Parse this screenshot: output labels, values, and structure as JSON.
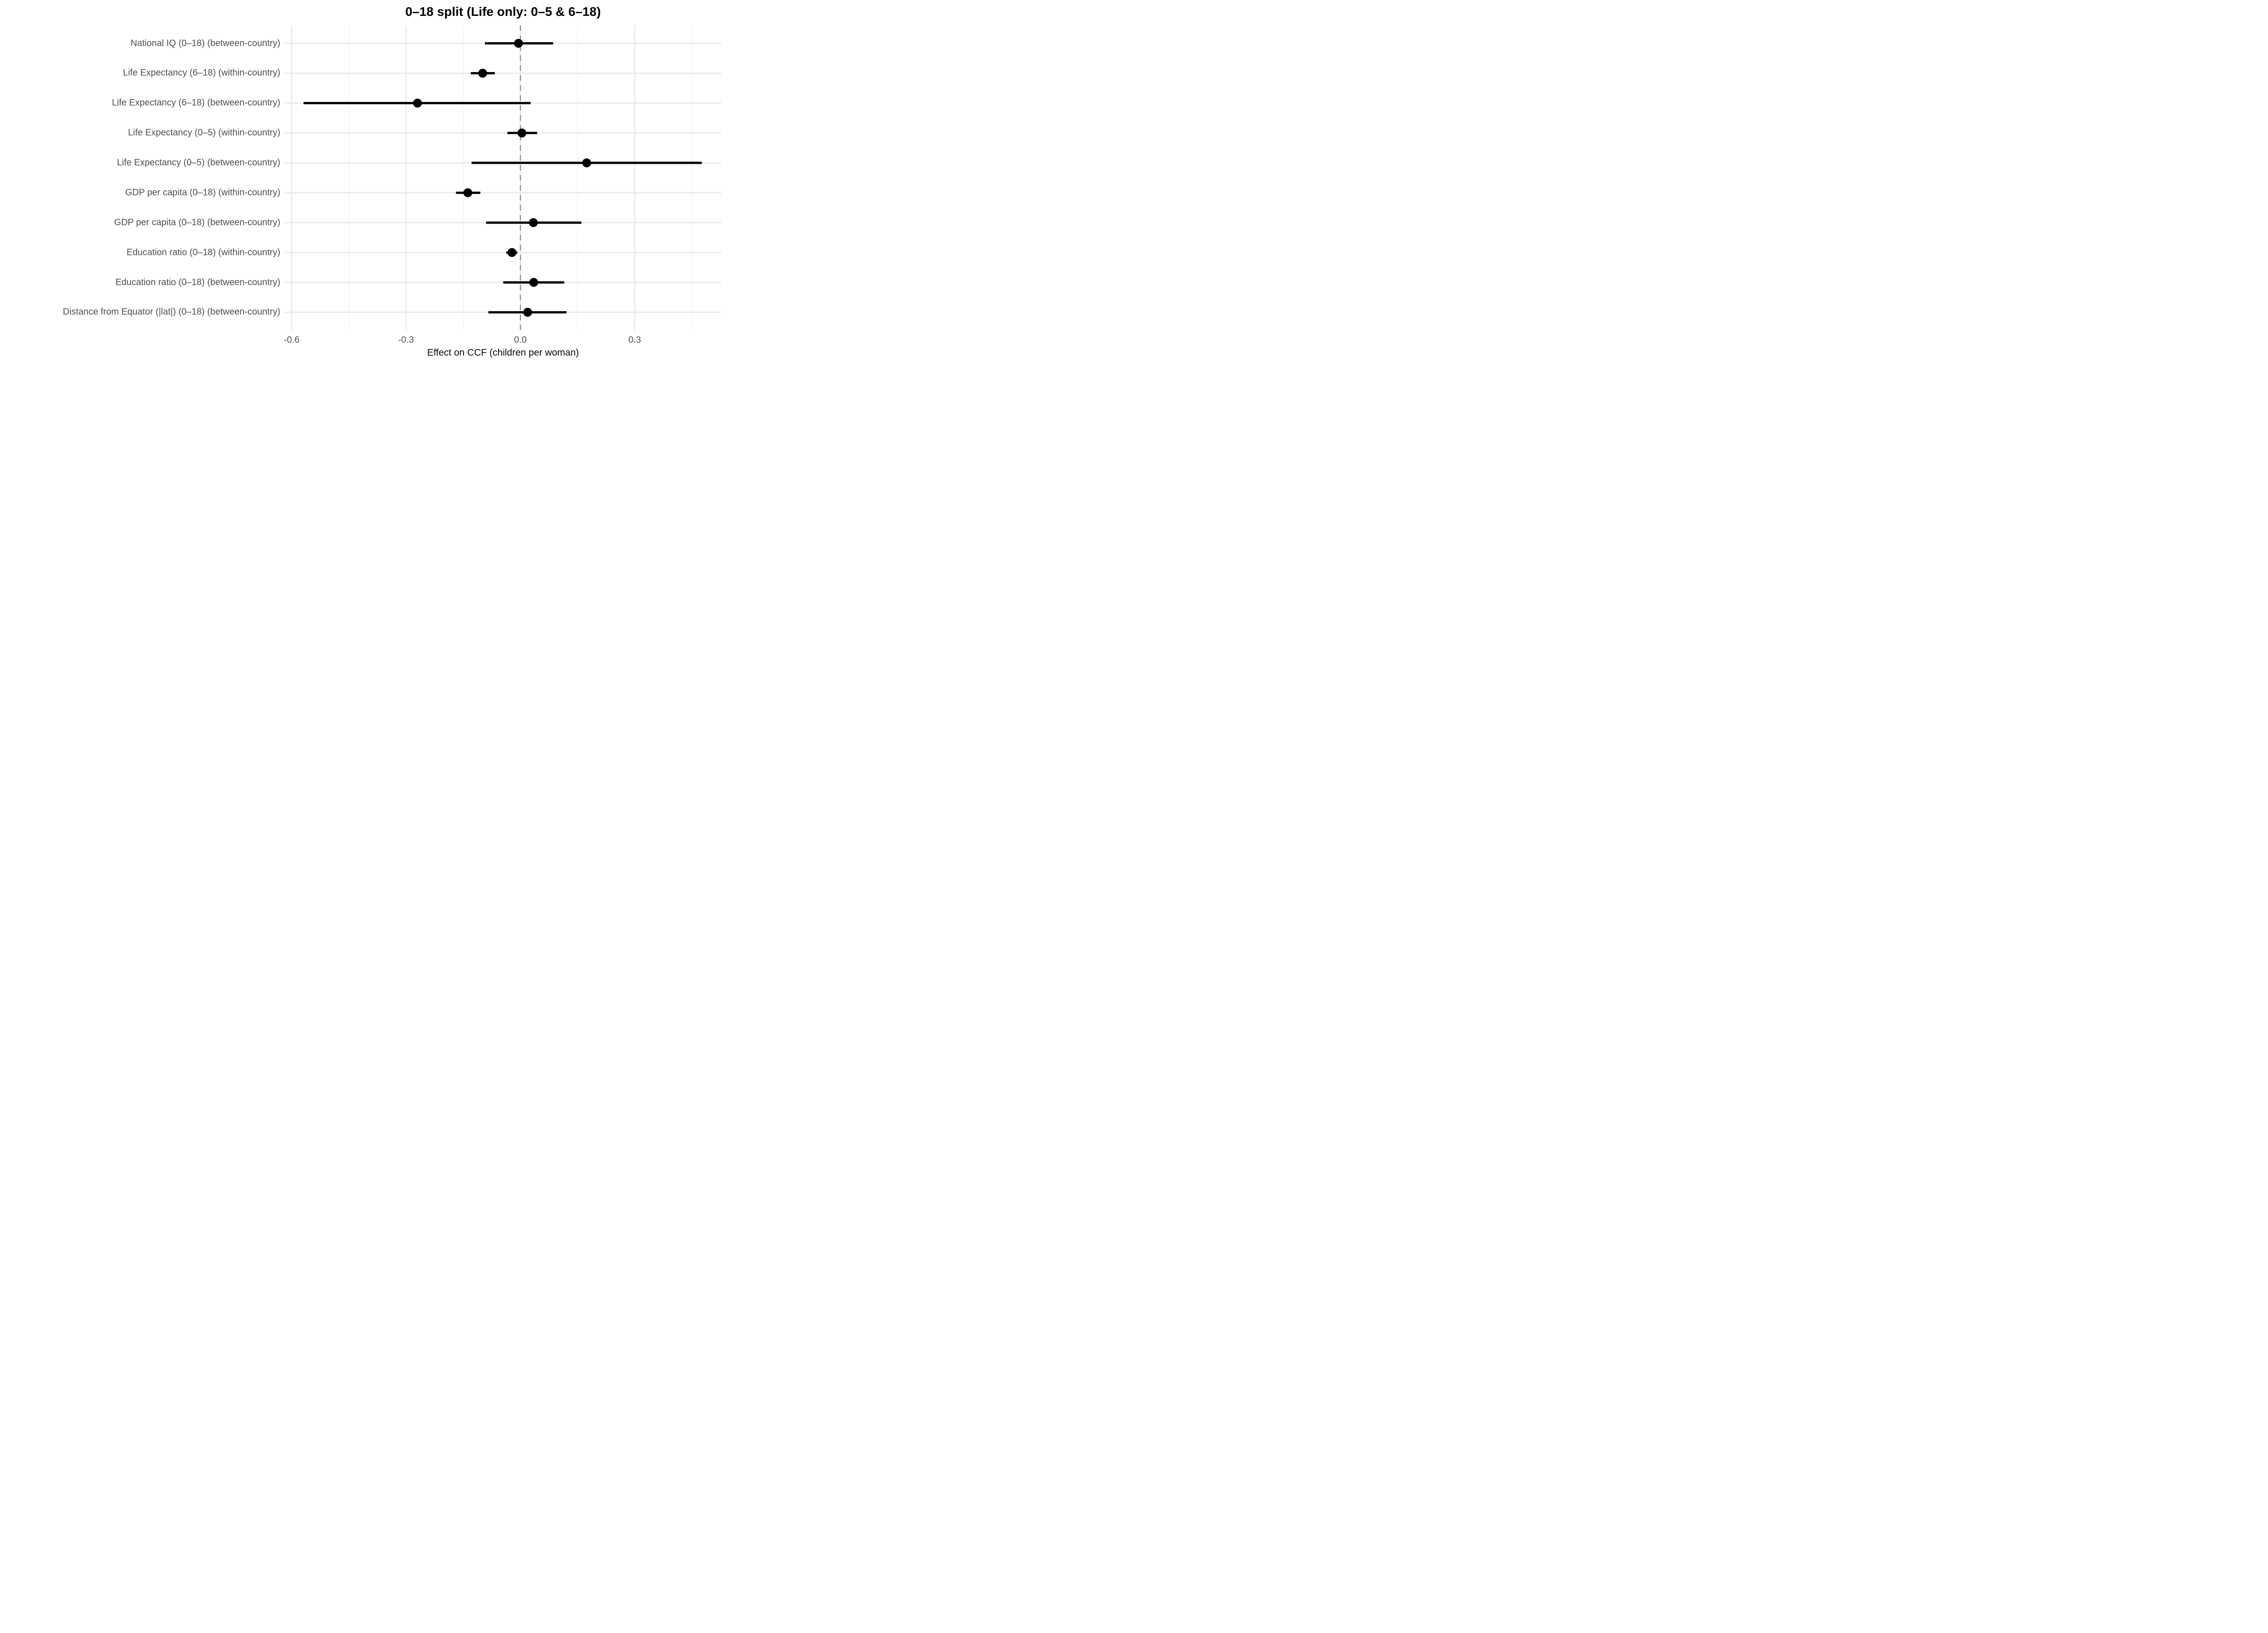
{
  "chart_data": {
    "type": "scatter",
    "subtype": "forest-plot-horizontal-ci",
    "title": "0–18 split (Life only: 0–5 & 6–18)",
    "xlabel": "Effect on CCF (children per woman)",
    "ylabel": "",
    "legend": "none",
    "grid": true,
    "categories": [
      "National IQ (0–18) (between-country)",
      "Life Expectancy (6–18) (within-country)",
      "Life Expectancy (6–18) (between-country)",
      "Life Expectancy (0–5) (within-country)",
      "Life Expectancy (0–5) (between-country)",
      "GDP per capita (0–18) (within-country)",
      "GDP per capita (0–18) (between-country)",
      "Education ratio (0–18) (within-country)",
      "Education ratio (0–18) (between-country)",
      "Distance from Equator (|lat|) (0–18) (between-country)"
    ],
    "series": [
      {
        "name": "estimate",
        "points": [
          {
            "label": "National IQ (0–18) (between-country)",
            "estimate": -0.005,
            "ci_low": -0.093,
            "ci_high": 0.086
          },
          {
            "label": "Life Expectancy (6–18) (within-country)",
            "estimate": -0.099,
            "ci_low": -0.13,
            "ci_high": -0.067
          },
          {
            "label": "Life Expectancy (6–18) (between-country)",
            "estimate": -0.27,
            "ci_low": -0.569,
            "ci_high": 0.027
          },
          {
            "label": "Life Expectancy (0–5) (within-country)",
            "estimate": 0.004,
            "ci_low": -0.034,
            "ci_high": 0.044
          },
          {
            "label": "Life Expectancy (0–5) (between-country)",
            "estimate": 0.174,
            "ci_low": -0.128,
            "ci_high": 0.476
          },
          {
            "label": "GDP per capita (0–18) (within-country)",
            "estimate": -0.138,
            "ci_low": -0.169,
            "ci_high": -0.105
          },
          {
            "label": "GDP per capita (0–18) (between-country)",
            "estimate": 0.034,
            "ci_low": -0.09,
            "ci_high": 0.16
          },
          {
            "label": "Education ratio (0–18) (within-country)",
            "estimate": -0.022,
            "ci_low": -0.037,
            "ci_high": -0.008
          },
          {
            "label": "Education ratio (0–18) (between-country)",
            "estimate": 0.035,
            "ci_low": -0.045,
            "ci_high": 0.115
          },
          {
            "label": "Distance from Equator (|lat|) (0–18) (between-country)",
            "estimate": 0.019,
            "ci_low": -0.084,
            "ci_high": 0.121
          }
        ]
      }
    ],
    "x_ticks": [
      {
        "value": -0.6,
        "label": "-0.6"
      },
      {
        "value": -0.3,
        "label": "-0.3"
      },
      {
        "value": 0.0,
        "label": "0.0"
      },
      {
        "value": 0.3,
        "label": "0.3"
      }
    ],
    "x_minor_ticks": [
      -0.45,
      -0.15,
      0.15,
      0.45
    ],
    "xlim": [
      -0.618,
      0.527
    ],
    "reference_line": {
      "x": 0.0,
      "style": "dashed"
    },
    "colors": {
      "point": "#000000",
      "ci_line": "#000000",
      "grid_major": "#e6e6e6",
      "grid_minor": "#f0f0f0",
      "grid_row": "#e8e8e8",
      "reference_line": "#828282",
      "axis_text": "#4d4d4d",
      "title": "#000000"
    }
  }
}
